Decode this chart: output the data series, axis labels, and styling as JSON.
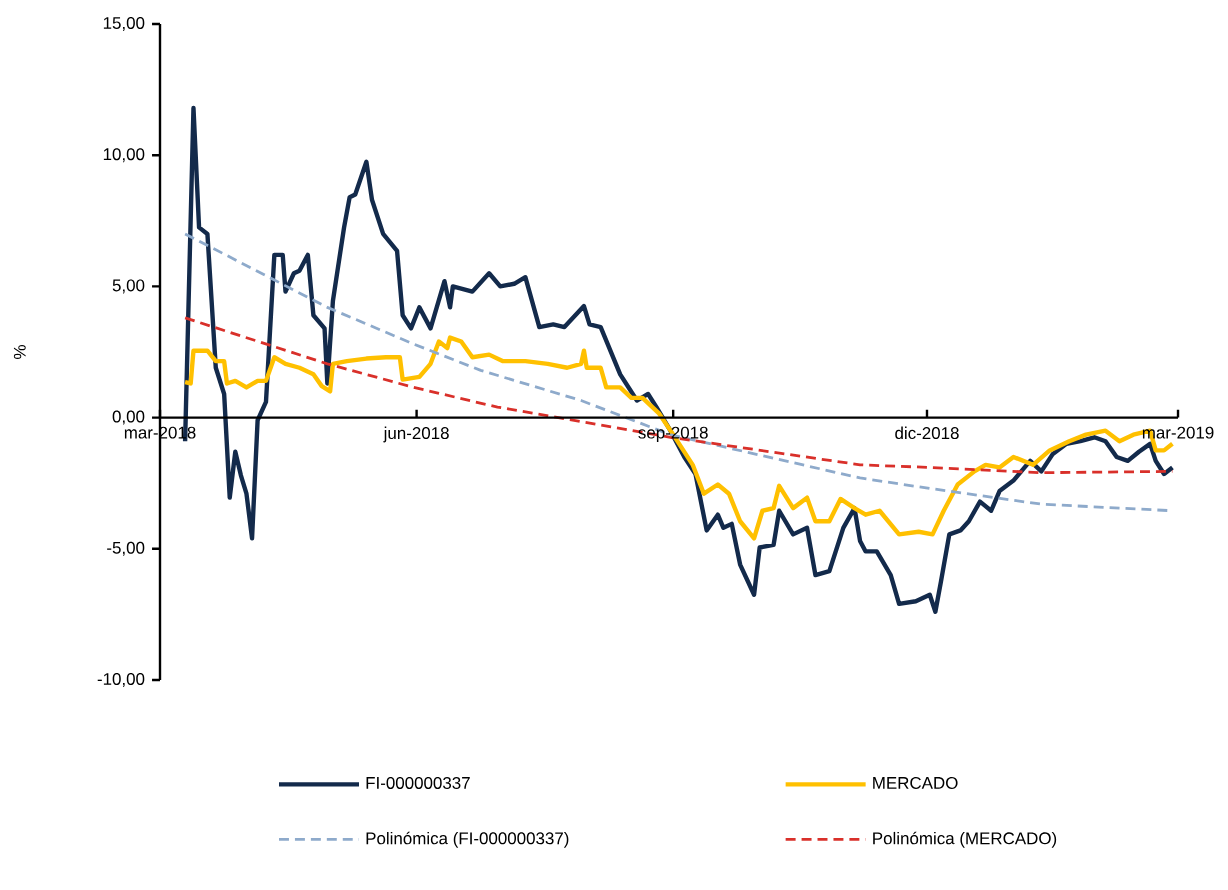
{
  "chart_data": {
    "type": "line",
    "ylabel": "%",
    "xlim": [
      "2018-03-01",
      "2019-03-01"
    ],
    "ylim": [
      -10,
      15
    ],
    "xticks": [
      {
        "value": "2018-03-01",
        "label": "mar-2018"
      },
      {
        "value": "2018-06-01",
        "label": "jun-2018"
      },
      {
        "value": "2018-09-01",
        "label": "sep-2018"
      },
      {
        "value": "2018-12-01",
        "label": "dic-2018"
      },
      {
        "value": "2019-03-01",
        "label": "mar-2019"
      }
    ],
    "yticks": [
      {
        "value": -10,
        "label": "-10,00"
      },
      {
        "value": -5,
        "label": "-5,00"
      },
      {
        "value": 0,
        "label": "0,00"
      },
      {
        "value": 5,
        "label": "5,00"
      },
      {
        "value": 10,
        "label": "10,00"
      },
      {
        "value": 15,
        "label": "15,00"
      }
    ],
    "legend": "bottom",
    "series": [
      {
        "name": "FI-000000337",
        "color": "#132a4b",
        "line_style": "solid",
        "x": [
          "2018-03-10",
          "2018-03-13",
          "2018-03-15",
          "2018-03-18",
          "2018-03-21",
          "2018-03-24",
          "2018-03-26",
          "2018-03-28",
          "2018-03-30",
          "2018-04-01",
          "2018-04-03",
          "2018-04-05",
          "2018-04-08",
          "2018-04-11",
          "2018-04-14",
          "2018-04-15",
          "2018-04-18",
          "2018-04-20",
          "2018-04-23",
          "2018-04-25",
          "2018-04-29",
          "2018-04-30",
          "2018-05-02",
          "2018-05-06",
          "2018-05-08",
          "2018-05-10",
          "2018-05-14",
          "2018-05-16",
          "2018-05-20",
          "2018-05-25",
          "2018-05-27",
          "2018-05-30",
          "2018-06-02",
          "2018-06-06",
          "2018-06-11",
          "2018-06-13",
          "2018-06-14",
          "2018-06-21",
          "2018-06-27",
          "2018-07-01",
          "2018-07-06",
          "2018-07-10",
          "2018-07-15",
          "2018-07-20",
          "2018-07-24",
          "2018-07-31",
          "2018-08-02",
          "2018-08-06",
          "2018-08-13",
          "2018-08-19",
          "2018-08-23",
          "2018-08-26",
          "2018-08-31",
          "2018-09-05",
          "2018-09-09",
          "2018-09-13",
          "2018-09-17",
          "2018-09-19",
          "2018-09-22",
          "2018-09-25",
          "2018-09-30",
          "2018-10-02",
          "2018-10-07",
          "2018-10-09",
          "2018-10-14",
          "2018-10-19",
          "2018-10-22",
          "2018-10-27",
          "2018-11-01",
          "2018-11-05",
          "2018-11-07",
          "2018-11-09",
          "2018-11-13",
          "2018-11-18",
          "2018-11-21",
          "2018-11-27",
          "2018-12-02",
          "2018-12-04",
          "2018-12-06",
          "2018-12-09",
          "2018-12-13",
          "2018-12-16",
          "2018-12-20",
          "2018-12-24",
          "2018-12-27",
          "2019-01-01",
          "2019-01-05",
          "2019-01-07",
          "2019-01-11",
          "2019-01-15",
          "2019-01-20",
          "2019-01-25",
          "2019-01-30",
          "2019-02-03",
          "2019-02-07",
          "2019-02-11",
          "2019-02-15",
          "2019-02-19",
          "2019-02-21",
          "2019-02-24",
          "2019-02-27"
        ],
        "values": [
          -0.9,
          11.8,
          7.25,
          7.0,
          1.9,
          0.9,
          -3.05,
          -1.3,
          -2.2,
          -2.9,
          -4.6,
          -0.1,
          0.6,
          6.2,
          6.2,
          4.8,
          5.5,
          5.6,
          6.2,
          3.9,
          3.4,
          1.3,
          4.45,
          7.25,
          8.4,
          8.5,
          9.75,
          8.3,
          7.0,
          6.35,
          3.9,
          3.4,
          4.2,
          3.4,
          5.2,
          4.2,
          5.0,
          4.8,
          5.5,
          5.0,
          5.1,
          5.35,
          3.45,
          3.55,
          3.45,
          4.25,
          3.55,
          3.45,
          1.65,
          0.65,
          0.9,
          0.4,
          -0.5,
          -1.5,
          -2.15,
          -4.3,
          -3.7,
          -4.2,
          -4.05,
          -5.6,
          -6.75,
          -4.95,
          -4.85,
          -3.55,
          -4.45,
          -4.2,
          -6.0,
          -5.85,
          -4.2,
          -3.45,
          -4.7,
          -5.1,
          -5.1,
          -6.0,
          -7.1,
          -7.0,
          -6.75,
          -7.4,
          -6.25,
          -4.45,
          -4.3,
          -3.95,
          -3.2,
          -3.55,
          -2.8,
          -2.4,
          -1.9,
          -1.65,
          -2.05,
          -1.4,
          -1.0,
          -0.9,
          -0.75,
          -0.9,
          -1.5,
          -1.65,
          -1.3,
          -1.0,
          -1.65,
          -2.15,
          -1.9
        ]
      },
      {
        "name": "MERCADO",
        "color": "#ffc000",
        "line_style": "solid",
        "x": [
          "2018-03-10",
          "2018-03-12",
          "2018-03-13",
          "2018-03-18",
          "2018-03-21",
          "2018-03-24",
          "2018-03-25",
          "2018-03-28",
          "2018-04-01",
          "2018-04-05",
          "2018-04-08",
          "2018-04-11",
          "2018-04-15",
          "2018-04-20",
          "2018-04-25",
          "2018-04-28",
          "2018-05-01",
          "2018-05-02",
          "2018-05-07",
          "2018-05-14",
          "2018-05-21",
          "2018-05-26",
          "2018-05-27",
          "2018-06-02",
          "2018-06-06",
          "2018-06-09",
          "2018-06-12",
          "2018-06-13",
          "2018-06-17",
          "2018-06-21",
          "2018-06-27",
          "2018-07-02",
          "2018-07-10",
          "2018-07-18",
          "2018-07-25",
          "2018-07-30",
          "2018-07-31",
          "2018-08-01",
          "2018-08-06",
          "2018-08-08",
          "2018-08-13",
          "2018-08-17",
          "2018-08-21",
          "2018-08-27",
          "2018-09-01",
          "2018-09-08",
          "2018-09-12",
          "2018-09-17",
          "2018-09-21",
          "2018-09-25",
          "2018-09-30",
          "2018-10-03",
          "2018-10-07",
          "2018-10-09",
          "2018-10-14",
          "2018-10-19",
          "2018-10-22",
          "2018-10-27",
          "2018-10-31",
          "2018-11-05",
          "2018-11-09",
          "2018-11-14",
          "2018-11-21",
          "2018-11-28",
          "2018-12-03",
          "2018-12-07",
          "2018-12-12",
          "2018-12-18",
          "2018-12-22",
          "2018-12-27",
          "2019-01-01",
          "2019-01-08",
          "2019-01-14",
          "2019-01-21",
          "2019-01-27",
          "2019-02-03",
          "2019-02-08",
          "2019-02-13",
          "2019-02-19",
          "2019-02-21",
          "2019-02-24",
          "2019-02-27"
        ],
        "values": [
          1.35,
          1.3,
          2.55,
          2.55,
          2.15,
          2.15,
          1.3,
          1.4,
          1.15,
          1.4,
          1.4,
          2.3,
          2.05,
          1.9,
          1.65,
          1.2,
          1.0,
          2.05,
          2.15,
          2.25,
          2.3,
          2.3,
          1.45,
          1.55,
          2.05,
          2.9,
          2.65,
          3.05,
          2.9,
          2.3,
          2.4,
          2.15,
          2.15,
          2.05,
          1.9,
          2.05,
          2.55,
          1.9,
          1.9,
          1.15,
          1.15,
          0.75,
          0.75,
          0.15,
          -0.65,
          -1.8,
          -2.9,
          -2.55,
          -2.9,
          -3.95,
          -4.6,
          -3.55,
          -3.45,
          -2.6,
          -3.45,
          -3.05,
          -3.95,
          -3.95,
          -3.1,
          -3.45,
          -3.7,
          -3.55,
          -4.45,
          -4.35,
          -4.45,
          -3.55,
          -2.55,
          -2.05,
          -1.8,
          -1.9,
          -1.5,
          -1.8,
          -1.25,
          -0.9,
          -0.65,
          -0.5,
          -0.9,
          -0.65,
          -0.5,
          -1.25,
          -1.25,
          -1.0
        ]
      },
      {
        "name": "Polinómica (FI-000000337)",
        "color": "#8eaacb",
        "line_style": "dashed",
        "x": [
          "2018-03-10",
          "2018-04-30",
          "2018-05-31",
          "2018-06-24",
          "2018-07-30",
          "2018-08-31",
          "2018-11-07",
          "2018-12-02",
          "2019-01-11",
          "2019-02-27"
        ],
        "values": [
          7.0,
          4.2,
          2.8,
          1.8,
          0.65,
          -0.65,
          -2.3,
          -2.7,
          -3.3,
          -3.55
        ]
      },
      {
        "name": "Polinómica (MERCADO)",
        "color": "#d9302a",
        "line_style": "dashed",
        "x": [
          "2018-03-10",
          "2018-04-30",
          "2018-05-31",
          "2018-06-30",
          "2018-07-30",
          "2018-08-31",
          "2018-11-07",
          "2018-12-02",
          "2019-01-11",
          "2019-02-27"
        ],
        "values": [
          3.8,
          2.05,
          1.15,
          0.4,
          -0.15,
          -0.75,
          -1.8,
          -1.9,
          -2.1,
          -2.05
        ]
      }
    ]
  }
}
